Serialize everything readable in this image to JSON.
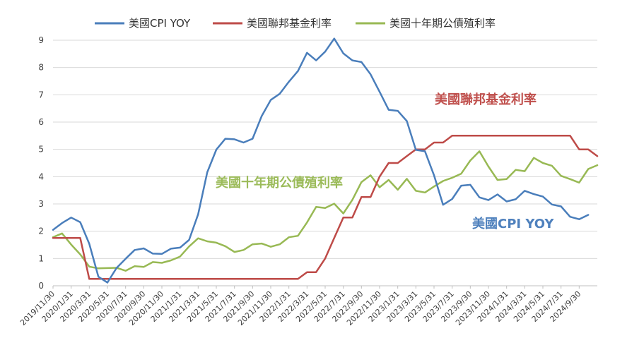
{
  "chart_data": {
    "type": "line",
    "title": "",
    "ylim": [
      0,
      9
    ],
    "yticks": [
      "0",
      "1",
      "2",
      "3",
      "4",
      "5",
      "6",
      "7",
      "8",
      "9"
    ],
    "grid": "horizontal",
    "legend_position": "top-center",
    "x_tick_labels": [
      "2019/11/30",
      "2020/1/31",
      "2020/3/31",
      "2020/5/31",
      "2020/7/31",
      "2020/9/30",
      "2020/11/30",
      "2021/1/31",
      "2021/3/31",
      "2021/5/31",
      "2021/7/31",
      "2021/9/30",
      "2021/11/30",
      "2022/1/31",
      "2022/3/31",
      "2022/5/31",
      "2022/7/31",
      "2022/9/30",
      "2022/11/30",
      "2023/1/31",
      "2023/3/31",
      "2023/5/31",
      "2023/7/31",
      "2023/9/30",
      "2023/11/30",
      "2024/1/31",
      "2024/3/31",
      "2024/5/31",
      "2024/7/31",
      "2024/9/30"
    ],
    "x": [
      "2019/11/30",
      "2019/12/31",
      "2020/1/31",
      "2020/2/29",
      "2020/3/31",
      "2020/4/30",
      "2020/5/31",
      "2020/6/30",
      "2020/7/31",
      "2020/8/31",
      "2020/9/30",
      "2020/10/31",
      "2020/11/30",
      "2020/12/31",
      "2021/1/31",
      "2021/2/28",
      "2021/3/31",
      "2021/4/30",
      "2021/5/31",
      "2021/6/30",
      "2021/7/31",
      "2021/8/31",
      "2021/9/30",
      "2021/10/31",
      "2021/11/30",
      "2021/12/31",
      "2022/1/31",
      "2022/2/28",
      "2022/3/31",
      "2022/4/30",
      "2022/5/31",
      "2022/6/30",
      "2022/7/31",
      "2022/8/31",
      "2022/9/30",
      "2022/10/31",
      "2022/11/30",
      "2022/12/31",
      "2023/1/31",
      "2023/2/28",
      "2023/3/31",
      "2023/4/30",
      "2023/5/31",
      "2023/6/30",
      "2023/7/31",
      "2023/8/31",
      "2023/9/30",
      "2023/10/31",
      "2023/11/30",
      "2023/12/31",
      "2024/1/31",
      "2024/2/29",
      "2024/3/31",
      "2024/4/30",
      "2024/5/31",
      "2024/6/30",
      "2024/7/31",
      "2024/8/31",
      "2024/9/30",
      "2024/10/31",
      "2024/11/30"
    ],
    "series": [
      {
        "name": "美國CPI YOY",
        "color": "#4a7ebb",
        "values": [
          2.05,
          2.3,
          2.5,
          2.33,
          1.54,
          0.33,
          0.12,
          0.65,
          0.99,
          1.31,
          1.37,
          1.18,
          1.17,
          1.36,
          1.4,
          1.68,
          2.62,
          4.16,
          4.99,
          5.39,
          5.37,
          5.25,
          5.39,
          6.22,
          6.81,
          7.04,
          7.48,
          7.87,
          8.54,
          8.26,
          8.58,
          9.06,
          8.52,
          8.26,
          8.2,
          7.75,
          7.11,
          6.45,
          6.41,
          6.04,
          4.98,
          4.93,
          4.05,
          2.97,
          3.18,
          3.67,
          3.7,
          3.24,
          3.14,
          3.35,
          3.09,
          3.17,
          3.48,
          3.36,
          3.27,
          2.98,
          2.91,
          2.53,
          2.44,
          2.6,
          null
        ]
      },
      {
        "name": "美國聯邦基金利率",
        "color": "#be4b48",
        "values": [
          1.75,
          1.75,
          1.75,
          1.75,
          0.25,
          0.25,
          0.25,
          0.25,
          0.25,
          0.25,
          0.25,
          0.25,
          0.25,
          0.25,
          0.25,
          0.25,
          0.25,
          0.25,
          0.25,
          0.25,
          0.25,
          0.25,
          0.25,
          0.25,
          0.25,
          0.25,
          0.25,
          0.25,
          0.5,
          0.5,
          1.0,
          1.75,
          2.5,
          2.5,
          3.25,
          3.25,
          4.0,
          4.5,
          4.5,
          4.75,
          5.0,
          5.0,
          5.25,
          5.25,
          5.5,
          5.5,
          5.5,
          5.5,
          5.5,
          5.5,
          5.5,
          5.5,
          5.5,
          5.5,
          5.5,
          5.5,
          5.5,
          5.5,
          5.0,
          5.0,
          4.75
        ]
      },
      {
        "name": "美國十年期公債殖利率",
        "color": "#98b954",
        "values": [
          1.78,
          1.92,
          1.51,
          1.15,
          0.7,
          0.64,
          0.65,
          0.66,
          0.55,
          0.72,
          0.69,
          0.87,
          0.84,
          0.93,
          1.07,
          1.44,
          1.74,
          1.63,
          1.58,
          1.45,
          1.24,
          1.31,
          1.52,
          1.55,
          1.43,
          1.52,
          1.78,
          1.83,
          2.32,
          2.89,
          2.85,
          3.01,
          2.65,
          3.15,
          3.8,
          4.05,
          3.61,
          3.88,
          3.52,
          3.92,
          3.48,
          3.42,
          3.64,
          3.84,
          3.96,
          4.11,
          4.59,
          4.93,
          4.37,
          3.88,
          3.91,
          4.25,
          4.2,
          4.69,
          4.5,
          4.4,
          4.03,
          3.91,
          3.78,
          4.28,
          4.42
        ]
      }
    ],
    "annotations": [
      {
        "text": "美國聯邦基金利率",
        "color": "#c0504d"
      },
      {
        "text": "美國十年期公債殖利率",
        "color": "#9bbb59"
      },
      {
        "text": "美國CPI YOY",
        "color": "#4f81bd"
      }
    ]
  }
}
